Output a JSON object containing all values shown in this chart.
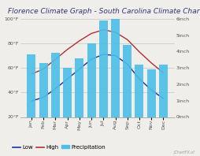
{
  "title": "Florence Climate Graph - South Carolina Climate Chart",
  "months": [
    "Jan",
    "Feb",
    "Mar",
    "Apr",
    "May",
    "Jun",
    "Jul",
    "Aug",
    "Sep",
    "Oct",
    "Nov",
    "Dec"
  ],
  "precip_inches": [
    3.8,
    3.3,
    3.9,
    3.0,
    3.6,
    4.5,
    5.9,
    6.0,
    4.4,
    3.2,
    2.9,
    3.2
  ],
  "high_f": [
    55,
    59,
    67,
    75,
    82,
    88,
    91,
    89,
    83,
    73,
    64,
    56
  ],
  "low_f": [
    33,
    36,
    43,
    51,
    59,
    67,
    71,
    70,
    63,
    51,
    42,
    35
  ],
  "bar_color": "#4bbfe8",
  "high_color": "#b03030",
  "low_color": "#1a2fa0",
  "bg_color": "#f0eeeb",
  "plot_bg": "#f0eeeb",
  "grid_color": "#bbbbbb",
  "temp_ylim": [
    20,
    100
  ],
  "temp_yticks": [
    20,
    40,
    60,
    80,
    100
  ],
  "temp_yticklabels": [
    "20°F",
    "40°F",
    "60°F",
    "80°F",
    "100°F"
  ],
  "precip_ylim": [
    0,
    6
  ],
  "precip_yticks": [
    0,
    1,
    2,
    3,
    4,
    5,
    6
  ],
  "precip_yticklabels": [
    "0inch",
    "1inch",
    "2inch",
    "3inch",
    "4inch",
    "5inch",
    "6inch"
  ],
  "title_fontsize": 6.5,
  "tick_fontsize": 4.5,
  "legend_fontsize": 5.0
}
